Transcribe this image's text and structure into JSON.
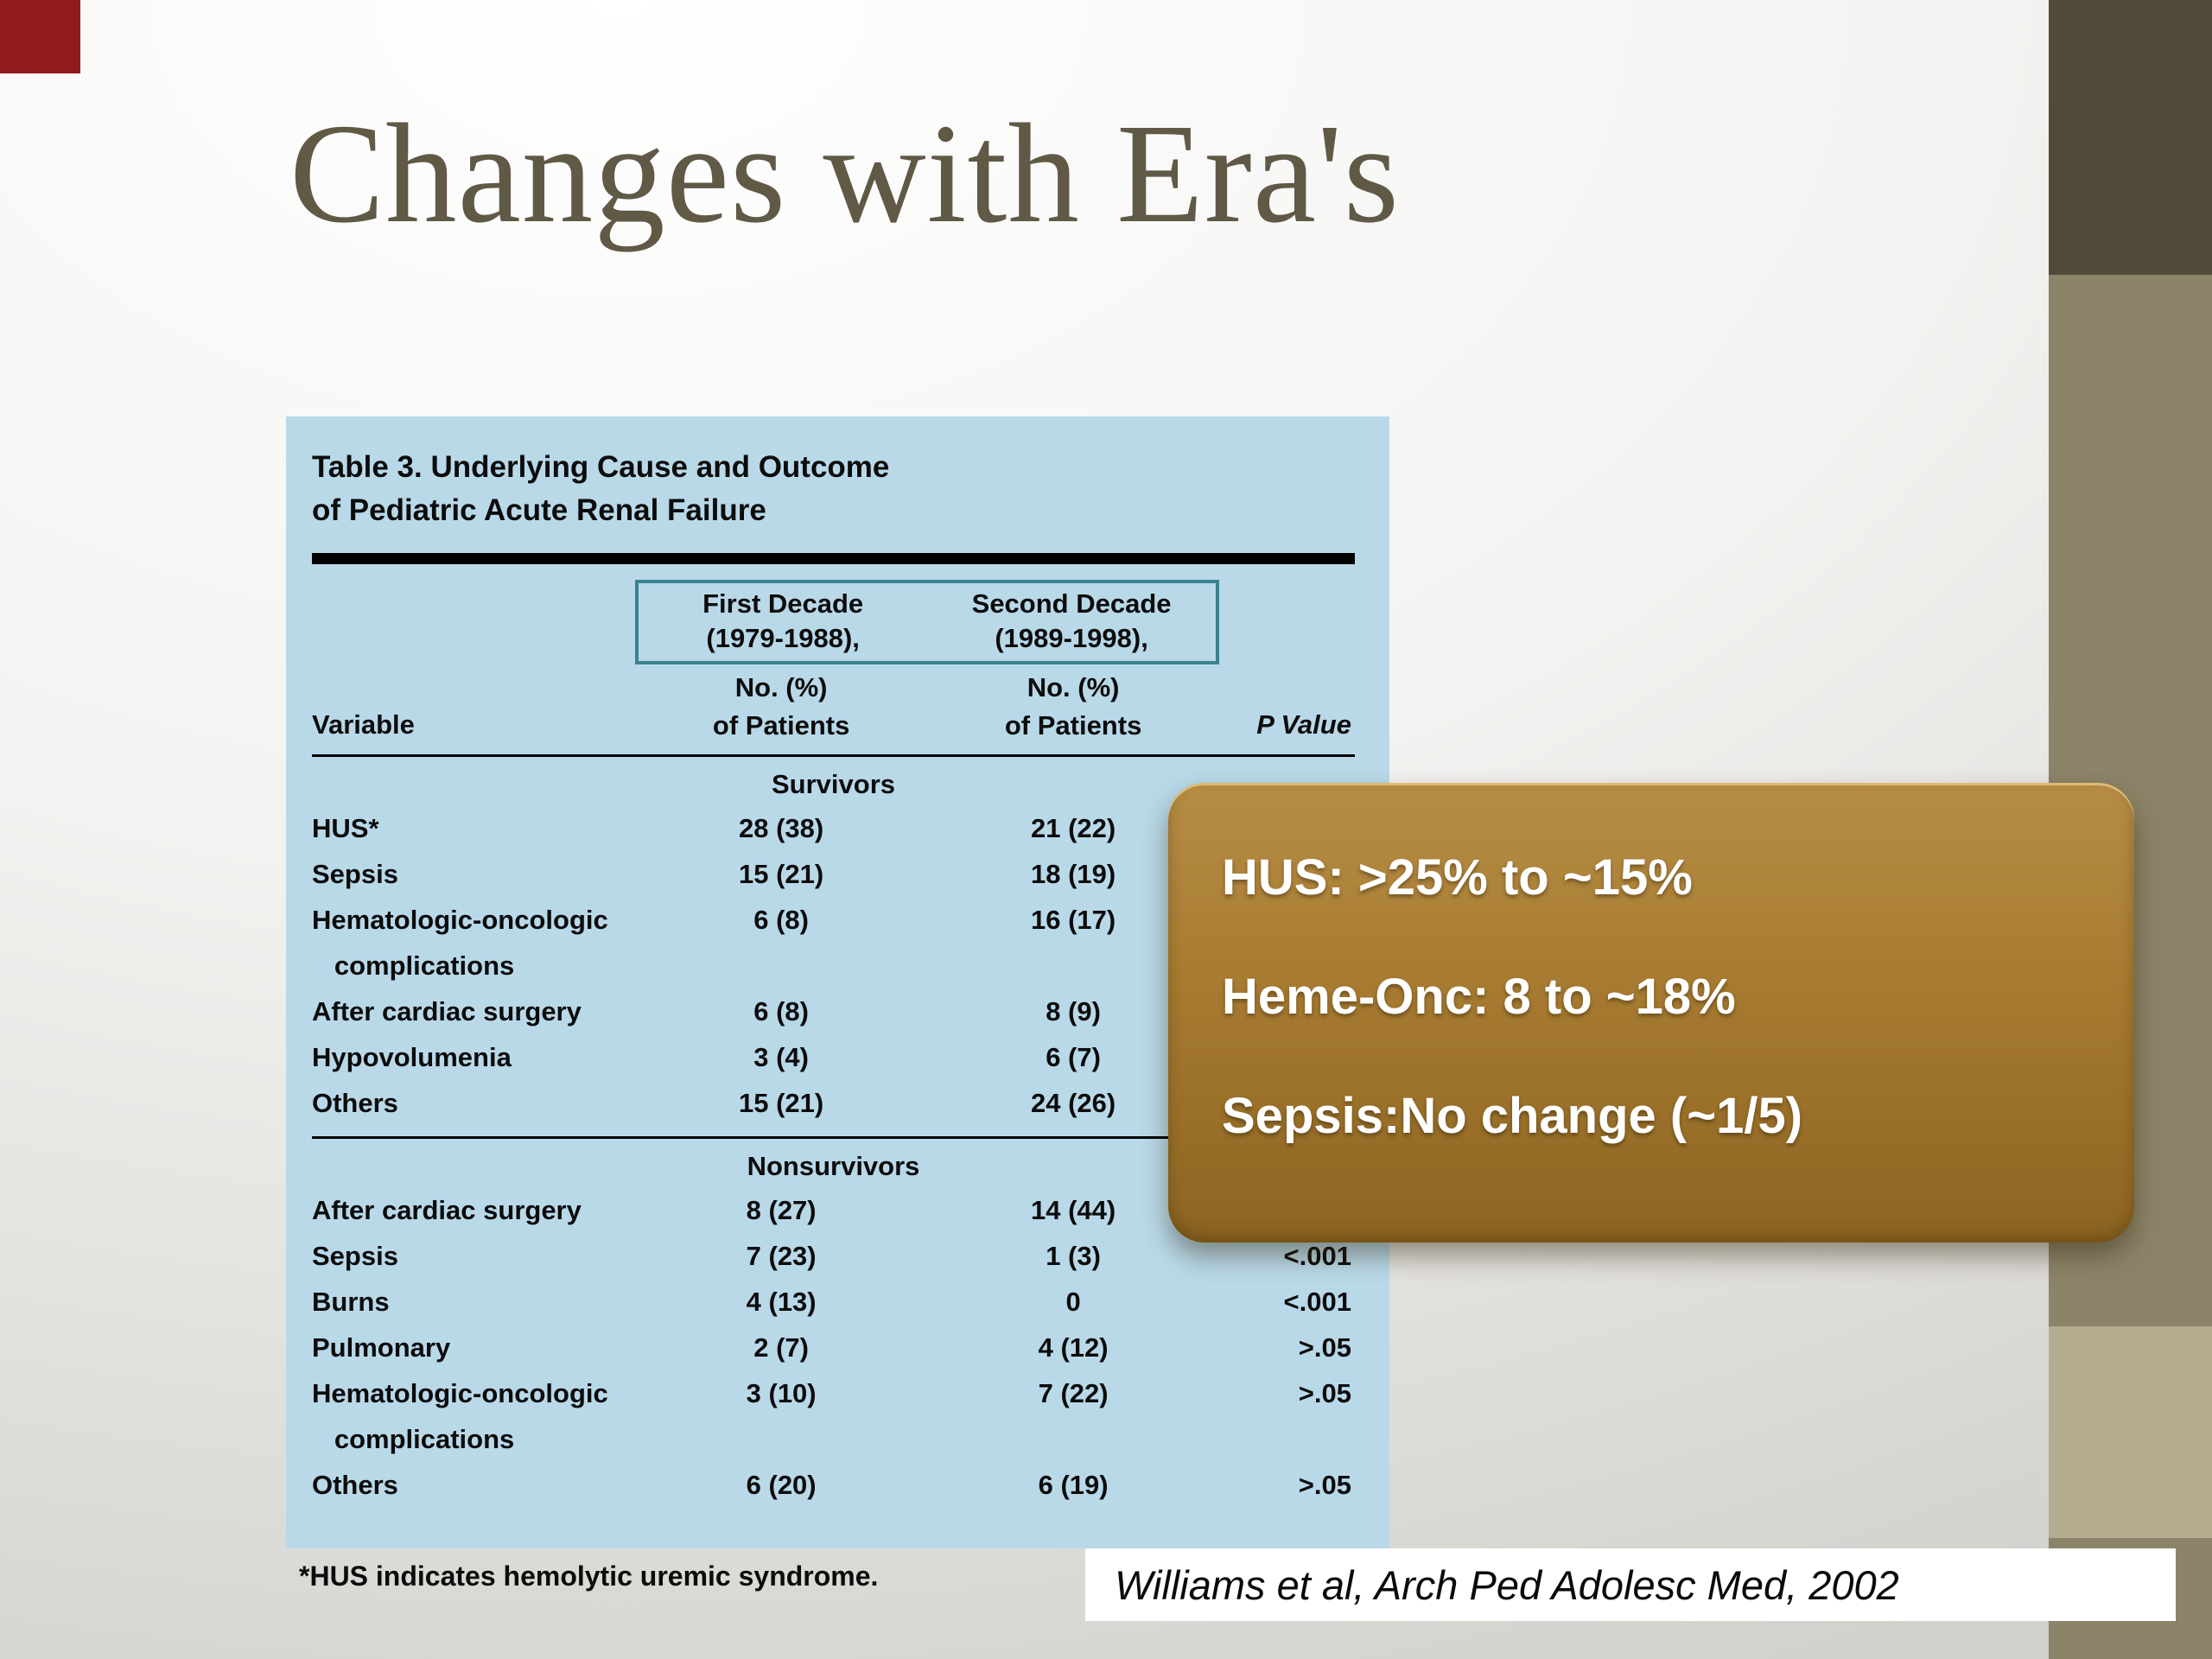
{
  "slide": {
    "title": "Changes with Era's",
    "citation": "Williams et al, Arch Ped Adolesc Med, 2002"
  },
  "table": {
    "caption_line1": "Table 3. Underlying Cause and Outcome",
    "caption_line2": "of Pediatric Acute Renal Failure",
    "col_group": {
      "first": {
        "line1": "First Decade",
        "line2": "(1979-1988),"
      },
      "second": {
        "line1": "Second Decade",
        "line2": "(1989-1998),"
      }
    },
    "headers": {
      "variable": "Variable",
      "no_pct": "No. (%)",
      "of_patients": "of Patients",
      "p_value": "P Value"
    },
    "sections": [
      {
        "label": "Survivors",
        "rows": [
          {
            "variable": "HUS*",
            "first": "28 (38)",
            "second": "21 (22)",
            "p": ""
          },
          {
            "variable": "Sepsis",
            "first": "15 (21)",
            "second": "18 (19)",
            "p": ""
          },
          {
            "variable": "Hematologic-oncologic\n   complications",
            "first": "6 (8)",
            "second": "16 (17)",
            "p": ""
          },
          {
            "variable": "After cardiac surgery",
            "first": "6 (8)",
            "second": "8 (9)",
            "p": ""
          },
          {
            "variable": "Hypovolumenia",
            "first": "3 (4)",
            "second": "6 (7)",
            "p": ""
          },
          {
            "variable": "Others",
            "first": "15 (21)",
            "second": "24 (26)",
            "p": ""
          }
        ]
      },
      {
        "label": "Nonsurvivors",
        "rows": [
          {
            "variable": "After cardiac surgery",
            "first": "8 (27)",
            "second": "14 (44)",
            "p": ""
          },
          {
            "variable": "Sepsis",
            "first": "7 (23)",
            "second": "1 (3)",
            "p": "<.001"
          },
          {
            "variable": "Burns",
            "first": "4 (13)",
            "second": "0",
            "p": "<.001"
          },
          {
            "variable": "Pulmonary",
            "first": "2 (7)",
            "second": "4 (12)",
            "p": ">.05"
          },
          {
            "variable": "Hematologic-oncologic\n   complications",
            "first": "3 (10)",
            "second": "7 (22)",
            "p": ">.05"
          },
          {
            "variable": "Others",
            "first": "6 (20)",
            "second": "6 (19)",
            "p": ">.05"
          }
        ]
      }
    ],
    "footnote": "*HUS indicates hemolytic uremic syndrome."
  },
  "callout": {
    "lines": [
      "HUS: >25% to ~15%",
      "Heme-Onc: 8 to ~18%",
      "Sepsis:No change (~1/5)"
    ]
  },
  "colors": {
    "panel_blue": "#b9d9e9",
    "callout_gold": "#a67a30",
    "band_olive": "#8c8468",
    "band_dark": "#514c3a",
    "band_light": "#b4ac8e",
    "corner_red": "#901a1d",
    "teal_outline": "#3a8390",
    "title_gray": "#5f5946"
  }
}
